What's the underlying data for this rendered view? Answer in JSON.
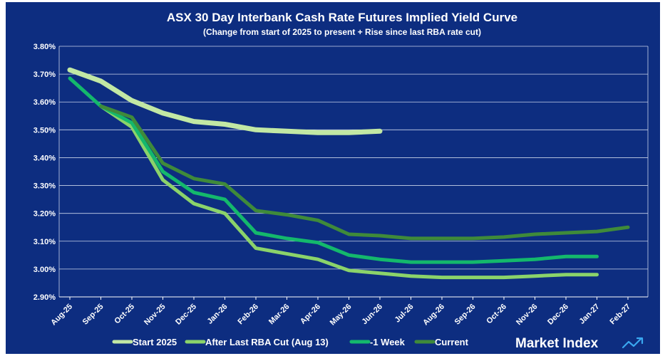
{
  "chart_data": {
    "type": "line",
    "title": "ASX 30 Day Interbank Cash Rate Futures Implied Yield Curve",
    "subtitle": "(Change from start of 2025 to present + Rise since last RBA rate cut)",
    "xlabel": "",
    "ylabel": "",
    "ylim": [
      2.9,
      3.8
    ],
    "yticks": [
      "3.80%",
      "3.70%",
      "3.60%",
      "3.50%",
      "3.40%",
      "3.30%",
      "3.20%",
      "3.10%",
      "3.00%",
      "2.90%"
    ],
    "categories": [
      "Aug-25",
      "Sep-25",
      "Oct-25",
      "Nov-25",
      "Dec-25",
      "Jan-26",
      "Feb-26",
      "Mar-26",
      "Apr-26",
      "May-26",
      "Jun-26",
      "Jul-26",
      "Aug-26",
      "Sep-26",
      "Oct-26",
      "Nov-26",
      "Dec-26",
      "Jan-27",
      "Feb-27"
    ],
    "grid": true,
    "legend_position": "bottom",
    "series": [
      {
        "name": "Start 2025",
        "color": "#c2e8a4",
        "width": 7,
        "values": [
          3.715,
          3.675,
          3.605,
          3.56,
          3.53,
          3.52,
          3.5,
          3.495,
          3.49,
          3.49,
          3.495,
          null,
          null,
          null,
          null,
          null,
          null,
          null,
          null
        ]
      },
      {
        "name": "After Last RBA Cut (Aug 13)",
        "color": "#8bd36a",
        "width": 5,
        "values": [
          null,
          3.585,
          3.51,
          3.32,
          3.235,
          3.2,
          3.075,
          3.055,
          3.035,
          2.995,
          2.985,
          2.975,
          2.97,
          2.97,
          2.97,
          2.975,
          2.98,
          2.98,
          null
        ]
      },
      {
        "name": "-1 Week",
        "color": "#14b86c",
        "width": 5,
        "values": [
          3.685,
          3.585,
          3.525,
          3.35,
          3.275,
          3.25,
          3.13,
          3.11,
          3.095,
          3.05,
          3.035,
          3.025,
          3.025,
          3.025,
          3.03,
          3.035,
          3.045,
          3.045,
          null
        ]
      },
      {
        "name": "Current",
        "color": "#3f8a3a",
        "width": 5,
        "values": [
          null,
          3.585,
          3.545,
          3.38,
          3.325,
          3.305,
          3.21,
          3.195,
          3.175,
          3.125,
          3.12,
          3.11,
          3.11,
          3.11,
          3.115,
          3.125,
          3.13,
          3.135,
          3.15
        ]
      }
    ]
  },
  "brand": {
    "name": "Market Index"
  }
}
